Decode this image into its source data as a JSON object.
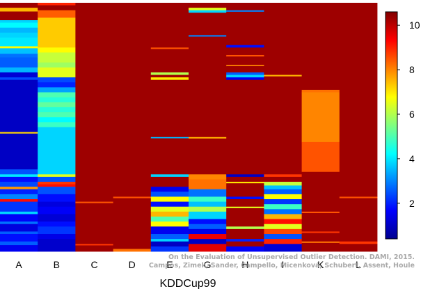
{
  "chart_data": {
    "type": "heatmap",
    "xlabel": "KDDCup99",
    "ylabel": "",
    "categories": [
      "A",
      "B",
      "C",
      "D",
      "E",
      "G",
      "H",
      "I",
      "K",
      "L"
    ],
    "colorbar": {
      "min": 0.4,
      "max": 10.6,
      "ticks": [
        2,
        4,
        6,
        8,
        10
      ]
    },
    "background_value": 10.3,
    "colormap": [
      "#00008f",
      "#0000ff",
      "#0080ff",
      "#00ffff",
      "#80ff80",
      "#ffff00",
      "#ff8000",
      "#ff0000",
      "#800000"
    ],
    "grid": false,
    "credit": [
      "On the Evaluation of Unsupervised Outlier Detection. DAMI, 2015.",
      "Campos, Zimek, Sander, Campello, Micenková, Schubert, Assent, Houle"
    ],
    "columns": [
      {
        "name": "A",
        "segments": [
          [
            0.0,
            0.02,
            10.3
          ],
          [
            0.02,
            0.035,
            7.5
          ],
          [
            0.035,
            0.07,
            10.3
          ],
          [
            0.07,
            0.08,
            3.8
          ],
          [
            0.08,
            0.1,
            4.2
          ],
          [
            0.1,
            0.12,
            3.5
          ],
          [
            0.12,
            0.14,
            3.8
          ],
          [
            0.14,
            0.175,
            4.0
          ],
          [
            0.175,
            0.183,
            6.8
          ],
          [
            0.183,
            0.205,
            3.6
          ],
          [
            0.205,
            0.22,
            2.8
          ],
          [
            0.22,
            0.26,
            2.6
          ],
          [
            0.26,
            0.28,
            3.5
          ],
          [
            0.28,
            0.3,
            1.2
          ],
          [
            0.3,
            0.31,
            2.4
          ],
          [
            0.31,
            0.52,
            1.0
          ],
          [
            0.52,
            0.526,
            7.2
          ],
          [
            0.526,
            0.67,
            1.0
          ],
          [
            0.67,
            0.69,
            2.5
          ],
          [
            0.69,
            0.7,
            4.0
          ],
          [
            0.7,
            0.72,
            1.8
          ],
          [
            0.72,
            0.74,
            2.4
          ],
          [
            0.74,
            0.75,
            7.8
          ],
          [
            0.75,
            0.77,
            2.0
          ],
          [
            0.77,
            0.79,
            3.0
          ],
          [
            0.79,
            0.8,
            9.2
          ],
          [
            0.8,
            0.84,
            2.2
          ],
          [
            0.84,
            0.85,
            3.8
          ],
          [
            0.85,
            0.88,
            1.6
          ],
          [
            0.88,
            0.89,
            2.8
          ],
          [
            0.89,
            0.92,
            1.3
          ],
          [
            0.92,
            0.93,
            2.6
          ],
          [
            0.93,
            0.96,
            1.8
          ],
          [
            0.96,
            0.975,
            2.6
          ],
          [
            0.975,
            1.0,
            1.5
          ]
        ]
      },
      {
        "name": "B",
        "segments": [
          [
            0.0,
            0.01,
            9.0
          ],
          [
            0.01,
            0.03,
            10.3
          ],
          [
            0.03,
            0.06,
            8.4
          ],
          [
            0.06,
            0.18,
            7.3
          ],
          [
            0.18,
            0.2,
            6.8
          ],
          [
            0.2,
            0.24,
            6.2
          ],
          [
            0.24,
            0.26,
            5.8
          ],
          [
            0.26,
            0.3,
            6.5
          ],
          [
            0.3,
            0.32,
            2.4
          ],
          [
            0.32,
            0.34,
            2.0
          ],
          [
            0.34,
            0.36,
            3.3
          ],
          [
            0.36,
            0.38,
            5.0
          ],
          [
            0.38,
            0.4,
            4.6
          ],
          [
            0.4,
            0.42,
            5.2
          ],
          [
            0.42,
            0.44,
            4.6
          ],
          [
            0.44,
            0.46,
            5.0
          ],
          [
            0.46,
            0.48,
            4.2
          ],
          [
            0.48,
            0.5,
            4.8
          ],
          [
            0.5,
            0.69,
            3.8
          ],
          [
            0.69,
            0.7,
            6.5
          ],
          [
            0.7,
            0.72,
            2.5
          ],
          [
            0.72,
            0.73,
            8.8
          ],
          [
            0.73,
            0.74,
            9.2
          ],
          [
            0.74,
            0.77,
            2.5
          ],
          [
            0.77,
            0.8,
            1.8
          ],
          [
            0.8,
            0.82,
            1.3
          ],
          [
            0.82,
            0.85,
            1.6
          ],
          [
            0.85,
            0.88,
            1.2
          ],
          [
            0.88,
            0.9,
            1.8
          ],
          [
            0.9,
            0.93,
            2.2
          ],
          [
            0.93,
            0.95,
            1.4
          ],
          [
            0.95,
            1.0,
            1.1
          ]
        ]
      },
      {
        "name": "C",
        "segments": [
          [
            0.0,
            0.8,
            10.3
          ],
          [
            0.8,
            0.806,
            8.5
          ],
          [
            0.806,
            0.97,
            10.3
          ],
          [
            0.97,
            0.976,
            8.8
          ],
          [
            0.976,
            1.0,
            10.3
          ]
        ]
      },
      {
        "name": "D",
        "segments": [
          [
            0.0,
            0.78,
            10.3
          ],
          [
            0.78,
            0.786,
            8.5
          ],
          [
            0.786,
            0.99,
            10.3
          ],
          [
            0.99,
            1.0,
            8.2
          ]
        ]
      },
      {
        "name": "E",
        "segments": [
          [
            0.0,
            0.18,
            10.3
          ],
          [
            0.18,
            0.186,
            8.5
          ],
          [
            0.186,
            0.28,
            10.3
          ],
          [
            0.28,
            0.29,
            6.0
          ],
          [
            0.29,
            0.3,
            10.3
          ],
          [
            0.3,
            0.31,
            7.0
          ],
          [
            0.31,
            0.54,
            10.3
          ],
          [
            0.54,
            0.545,
            3.5
          ],
          [
            0.545,
            0.69,
            10.3
          ],
          [
            0.69,
            0.7,
            3.8
          ],
          [
            0.7,
            0.74,
            10.3
          ],
          [
            0.74,
            0.76,
            1.5
          ],
          [
            0.76,
            0.78,
            2.5
          ],
          [
            0.78,
            0.8,
            6.8
          ],
          [
            0.8,
            0.82,
            1.8
          ],
          [
            0.82,
            0.84,
            6.5
          ],
          [
            0.84,
            0.86,
            7.5
          ],
          [
            0.86,
            0.88,
            5.0
          ],
          [
            0.88,
            0.9,
            6.8
          ],
          [
            0.9,
            0.93,
            1.5
          ],
          [
            0.93,
            0.95,
            2.6
          ],
          [
            0.95,
            0.96,
            3.8
          ],
          [
            0.96,
            0.98,
            1.0
          ],
          [
            0.98,
            1.0,
            2.2
          ]
        ]
      },
      {
        "name": "G",
        "segments": [
          [
            0.0,
            0.02,
            10.3
          ],
          [
            0.02,
            0.03,
            6.5
          ],
          [
            0.03,
            0.04,
            3.8
          ],
          [
            0.04,
            0.13,
            10.3
          ],
          [
            0.13,
            0.136,
            3.0
          ],
          [
            0.136,
            0.54,
            10.3
          ],
          [
            0.54,
            0.546,
            7.6
          ],
          [
            0.546,
            0.69,
            10.3
          ],
          [
            0.69,
            0.71,
            8.0
          ],
          [
            0.71,
            0.75,
            8.2
          ],
          [
            0.75,
            0.78,
            2.8
          ],
          [
            0.78,
            0.8,
            4.8
          ],
          [
            0.8,
            0.82,
            3.6
          ],
          [
            0.82,
            0.84,
            6.0
          ],
          [
            0.84,
            0.87,
            3.8
          ],
          [
            0.87,
            0.89,
            1.8
          ],
          [
            0.89,
            0.91,
            2.6
          ],
          [
            0.91,
            0.93,
            1.4
          ],
          [
            0.93,
            0.95,
            9.5
          ],
          [
            0.95,
            0.97,
            1.0
          ],
          [
            0.97,
            1.0,
            9.6
          ]
        ]
      },
      {
        "name": "H",
        "segments": [
          [
            0.0,
            0.03,
            10.3
          ],
          [
            0.03,
            0.036,
            3.0
          ],
          [
            0.036,
            0.17,
            10.3
          ],
          [
            0.17,
            0.18,
            1.8
          ],
          [
            0.18,
            0.21,
            10.3
          ],
          [
            0.21,
            0.216,
            8.5
          ],
          [
            0.216,
            0.25,
            10.3
          ],
          [
            0.25,
            0.255,
            8.0
          ],
          [
            0.255,
            0.28,
            10.3
          ],
          [
            0.28,
            0.29,
            2.6
          ],
          [
            0.29,
            0.3,
            3.8
          ],
          [
            0.3,
            0.31,
            1.5
          ],
          [
            0.31,
            0.69,
            10.3
          ],
          [
            0.69,
            0.7,
            1.0
          ],
          [
            0.7,
            0.72,
            10.3
          ],
          [
            0.72,
            0.726,
            7.0
          ],
          [
            0.726,
            0.78,
            10.3
          ],
          [
            0.78,
            0.79,
            1.8
          ],
          [
            0.79,
            0.82,
            10.3
          ],
          [
            0.82,
            0.826,
            6.5
          ],
          [
            0.826,
            0.9,
            10.3
          ],
          [
            0.9,
            0.91,
            6.0
          ],
          [
            0.91,
            0.95,
            10.3
          ],
          [
            0.95,
            0.96,
            2.0
          ],
          [
            0.96,
            0.98,
            10.3
          ],
          [
            0.98,
            1.0,
            1.6
          ]
        ]
      },
      {
        "name": "I",
        "segments": [
          [
            0.0,
            0.29,
            10.3
          ],
          [
            0.29,
            0.296,
            7.5
          ],
          [
            0.296,
            0.69,
            10.3
          ],
          [
            0.69,
            0.7,
            8.8
          ],
          [
            0.7,
            0.72,
            10.3
          ],
          [
            0.72,
            0.735,
            6.2
          ],
          [
            0.735,
            0.75,
            3.6
          ],
          [
            0.75,
            0.77,
            2.6
          ],
          [
            0.77,
            0.79,
            6.8
          ],
          [
            0.79,
            0.81,
            2.2
          ],
          [
            0.81,
            0.83,
            4.8
          ],
          [
            0.83,
            0.85,
            2.8
          ],
          [
            0.85,
            0.87,
            7.5
          ],
          [
            0.87,
            0.89,
            9.2
          ],
          [
            0.89,
            0.91,
            6.5
          ],
          [
            0.91,
            0.93,
            8.6
          ],
          [
            0.93,
            0.95,
            2.5
          ],
          [
            0.95,
            0.97,
            9.0
          ],
          [
            0.97,
            1.0,
            1.2
          ]
        ]
      },
      {
        "name": "K",
        "segments": [
          [
            0.0,
            0.35,
            10.3
          ],
          [
            0.35,
            0.36,
            8.2
          ],
          [
            0.36,
            0.56,
            8.0
          ],
          [
            0.56,
            0.68,
            8.5
          ],
          [
            0.68,
            0.84,
            10.3
          ],
          [
            0.84,
            0.846,
            8.5
          ],
          [
            0.846,
            0.92,
            10.3
          ],
          [
            0.92,
            0.926,
            8.8
          ],
          [
            0.926,
            0.96,
            10.3
          ],
          [
            0.96,
            0.966,
            8.2
          ],
          [
            0.966,
            1.0,
            10.3
          ]
        ]
      },
      {
        "name": "L",
        "segments": [
          [
            0.0,
            0.78,
            10.3
          ],
          [
            0.78,
            0.786,
            8.5
          ],
          [
            0.786,
            0.96,
            10.3
          ],
          [
            0.96,
            0.97,
            8.8
          ],
          [
            0.97,
            1.0,
            10.3
          ]
        ]
      }
    ]
  }
}
